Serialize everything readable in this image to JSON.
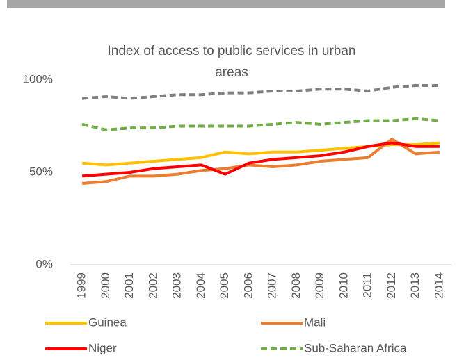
{
  "chart_data": {
    "type": "line",
    "title": "Index of access to public services in urban areas",
    "categories": [
      "1999",
      "2000",
      "2001",
      "2002",
      "2003",
      "2004",
      "2005",
      "2006",
      "2007",
      "2008",
      "2009",
      "2010",
      "2011",
      "2012",
      "2013",
      "2014"
    ],
    "series": [
      {
        "color": "#7f7f7f",
        "style": "dashed",
        "values": [
          90,
          91,
          90,
          91,
          92,
          92,
          93,
          93,
          94,
          94,
          95,
          95,
          94,
          96,
          97,
          97
        ]
      },
      {
        "name": "Sub-Saharan Africa",
        "color": "#70ad47",
        "style": "dashed",
        "values": [
          76,
          73,
          74,
          74,
          75,
          75,
          75,
          75,
          76,
          77,
          76,
          77,
          78,
          78,
          79,
          78
        ]
      },
      {
        "name": "Guinea",
        "color": "#ffc000",
        "style": "solid",
        "values": [
          55,
          54,
          55,
          56,
          57,
          58,
          61,
          60,
          61,
          61,
          62,
          63,
          64,
          65,
          65,
          66
        ]
      },
      {
        "name": "Mali",
        "color": "#ed7d31",
        "style": "solid",
        "values": [
          44,
          45,
          48,
          48,
          49,
          51,
          52,
          54,
          53,
          54,
          56,
          57,
          58,
          68,
          60,
          61
        ]
      },
      {
        "name": "Niger",
        "color": "#ff0000",
        "style": "solid",
        "values": [
          48,
          49,
          50,
          52,
          53,
          54,
          49,
          55,
          57,
          58,
          59,
          61,
          64,
          66,
          64,
          64
        ]
      }
    ],
    "legend_order": [
      2,
      3,
      4,
      1
    ],
    "ylim": [
      0,
      100
    ],
    "yticks": [
      {
        "value": 0,
        "label": "0%"
      },
      {
        "value": 50,
        "label": "50%"
      },
      {
        "value": 100,
        "label": "100%"
      }
    ],
    "grid": false
  }
}
